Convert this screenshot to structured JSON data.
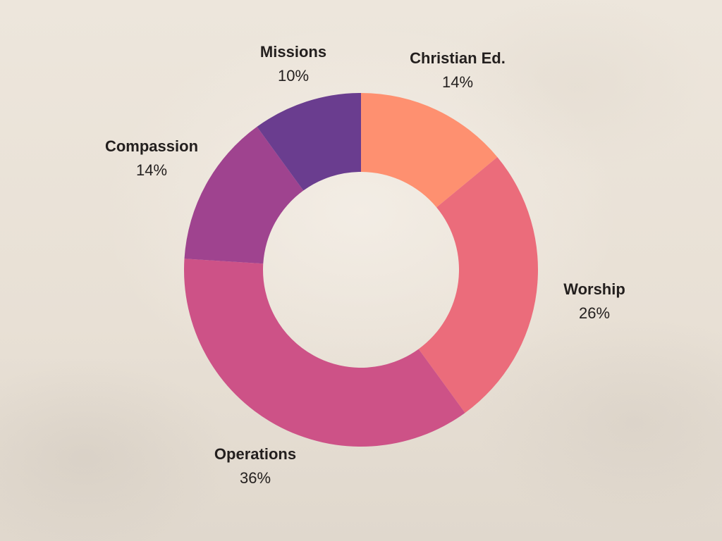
{
  "chart_data": {
    "type": "pie",
    "variant": "donut",
    "title": "",
    "categories": [
      "Christian Ed.",
      "Worship",
      "Operations",
      "Compassion",
      "Missions"
    ],
    "values": [
      14,
      26,
      36,
      14,
      10
    ],
    "value_labels": [
      "14%",
      "26%",
      "36%",
      "14%",
      "10%"
    ],
    "colors": [
      "#fe9070",
      "#eb6c7b",
      "#cd5287",
      "#9f438f",
      "#6a3d8f"
    ],
    "legend": "none"
  }
}
